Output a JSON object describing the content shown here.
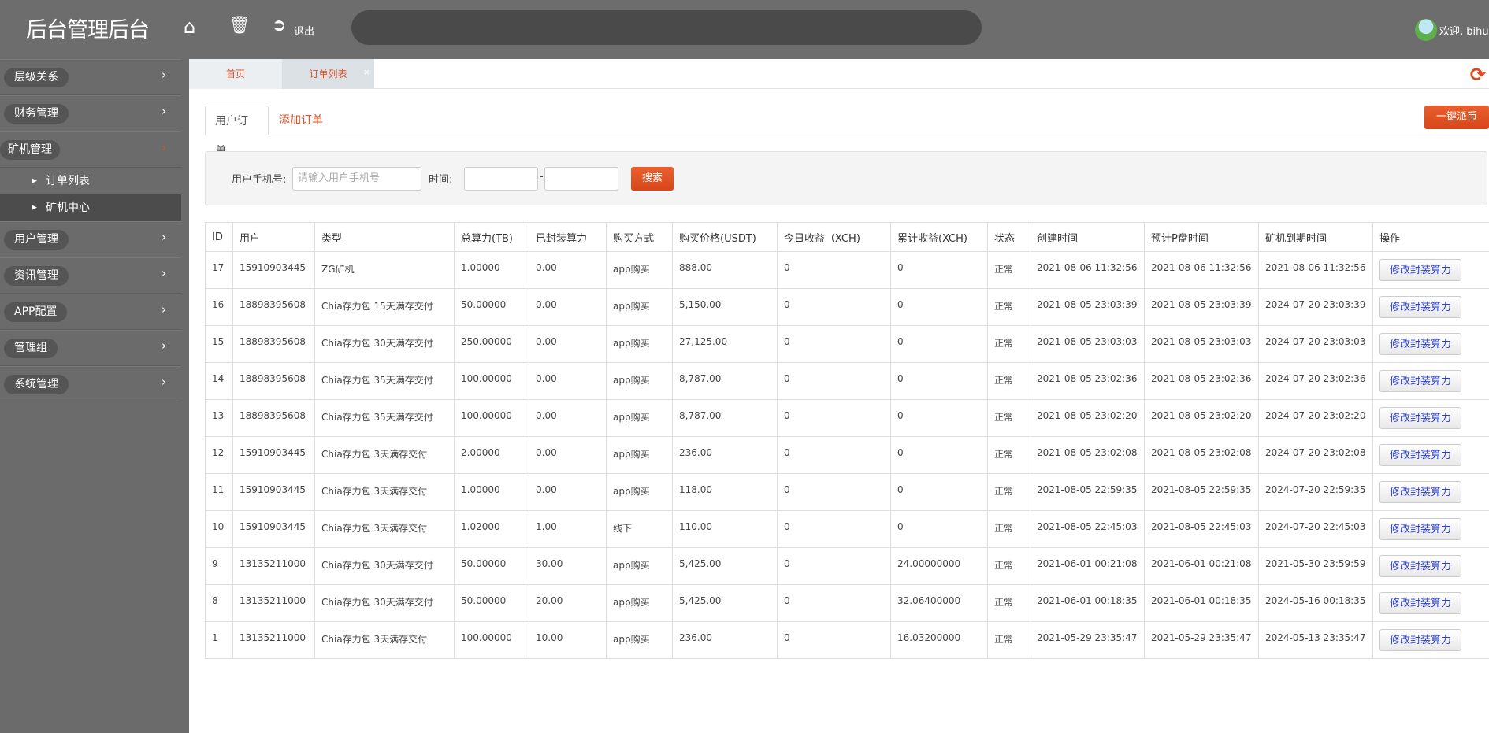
{
  "header": {
    "title": "后台管理后台",
    "home_icon": "home-icon",
    "trash_icon": "trash-icon",
    "logout_label": "退出",
    "welcome": "欢迎, bihu"
  },
  "sidebar": {
    "items": [
      {
        "label": "层级关系"
      },
      {
        "label": "财务管理"
      },
      {
        "label": "矿机管理",
        "open": true,
        "children": [
          {
            "label": "订单列表"
          },
          {
            "label": "矿机中心",
            "active": true
          }
        ]
      },
      {
        "label": "用户管理"
      },
      {
        "label": "资讯管理"
      },
      {
        "label": "APP配置"
      },
      {
        "label": "管理组"
      },
      {
        "label": "系统管理"
      }
    ]
  },
  "page_tabs": {
    "home": "首页",
    "orders": "订单列表",
    "close": "×"
  },
  "sub_tabs": {
    "user_orders": "用户订单",
    "add_order": "添加订单"
  },
  "dispatch_button": "一键派币",
  "search": {
    "phone_label": "用户手机号:",
    "phone_placeholder": "请输入用户手机号",
    "time_label": "时间:",
    "time_sep": "-",
    "button": "搜索"
  },
  "colors": {
    "accent": "#d9502a",
    "header": "#6d6d6d",
    "link": "#2a3fd0"
  },
  "table": {
    "columns": [
      "ID",
      "用户",
      "类型",
      "总算力(TB)",
      "已封装算力",
      "购买方式",
      "购买价格(USDT)",
      "今日收益（XCH)",
      "累计收益(XCH)",
      "状态",
      "创建时间",
      "预计P盘时间",
      "矿机到期时间",
      "操作"
    ],
    "action_label": "修改封装算力",
    "rows": [
      [
        "17",
        "15910903445",
        "ZG矿机",
        "1.00000",
        "0.00",
        "app购买",
        "888.00",
        "0",
        "0",
        "正常",
        "2021-08-06 11:32:56",
        "2021-08-06 11:32:56",
        "2021-08-06 11:32:56"
      ],
      [
        "16",
        "18898395608",
        "Chia存力包 15天满存交付",
        "50.00000",
        "0.00",
        "app购买",
        "5,150.00",
        "0",
        "0",
        "正常",
        "2021-08-05 23:03:39",
        "2021-08-05 23:03:39",
        "2024-07-20 23:03:39"
      ],
      [
        "15",
        "18898395608",
        "Chia存力包 30天满存交付",
        "250.00000",
        "0.00",
        "app购买",
        "27,125.00",
        "0",
        "0",
        "正常",
        "2021-08-05 23:03:03",
        "2021-08-05 23:03:03",
        "2024-07-20 23:03:03"
      ],
      [
        "14",
        "18898395608",
        "Chia存力包 35天满存交付",
        "100.00000",
        "0.00",
        "app购买",
        "8,787.00",
        "0",
        "0",
        "正常",
        "2021-08-05 23:02:36",
        "2021-08-05 23:02:36",
        "2024-07-20 23:02:36"
      ],
      [
        "13",
        "18898395608",
        "Chia存力包 35天满存交付",
        "100.00000",
        "0.00",
        "app购买",
        "8,787.00",
        "0",
        "0",
        "正常",
        "2021-08-05 23:02:20",
        "2021-08-05 23:02:20",
        "2024-07-20 23:02:20"
      ],
      [
        "12",
        "15910903445",
        "Chia存力包 3天满存交付",
        "2.00000",
        "0.00",
        "app购买",
        "236.00",
        "0",
        "0",
        "正常",
        "2021-08-05 23:02:08",
        "2021-08-05 23:02:08",
        "2024-07-20 23:02:08"
      ],
      [
        "11",
        "15910903445",
        "Chia存力包 3天满存交付",
        "1.00000",
        "0.00",
        "app购买",
        "118.00",
        "0",
        "0",
        "正常",
        "2021-08-05 22:59:35",
        "2021-08-05 22:59:35",
        "2024-07-20 22:59:35"
      ],
      [
        "10",
        "15910903445",
        "Chia存力包 3天满存交付",
        "1.02000",
        "1.00",
        "线下",
        "110.00",
        "0",
        "0",
        "正常",
        "2021-08-05 22:45:03",
        "2021-08-05 22:45:03",
        "2024-07-20 22:45:03"
      ],
      [
        "9",
        "13135211000",
        "Chia存力包 30天满存交付",
        "50.00000",
        "30.00",
        "app购买",
        "5,425.00",
        "0",
        "24.00000000",
        "正常",
        "2021-06-01 00:21:08",
        "2021-06-01 00:21:08",
        "2021-05-30 23:59:59"
      ],
      [
        "8",
        "13135211000",
        "Chia存力包 30天满存交付",
        "50.00000",
        "20.00",
        "app购买",
        "5,425.00",
        "0",
        "32.06400000",
        "正常",
        "2021-06-01 00:18:35",
        "2021-06-01 00:18:35",
        "2024-05-16 00:18:35"
      ],
      [
        "1",
        "13135211000",
        "Chia存力包 3天满存交付",
        "100.00000",
        "10.00",
        "app购买",
        "236.00",
        "0",
        "16.03200000",
        "正常",
        "2021-05-29 23:35:47",
        "2021-05-29 23:35:47",
        "2024-05-13 23:35:47"
      ]
    ]
  }
}
